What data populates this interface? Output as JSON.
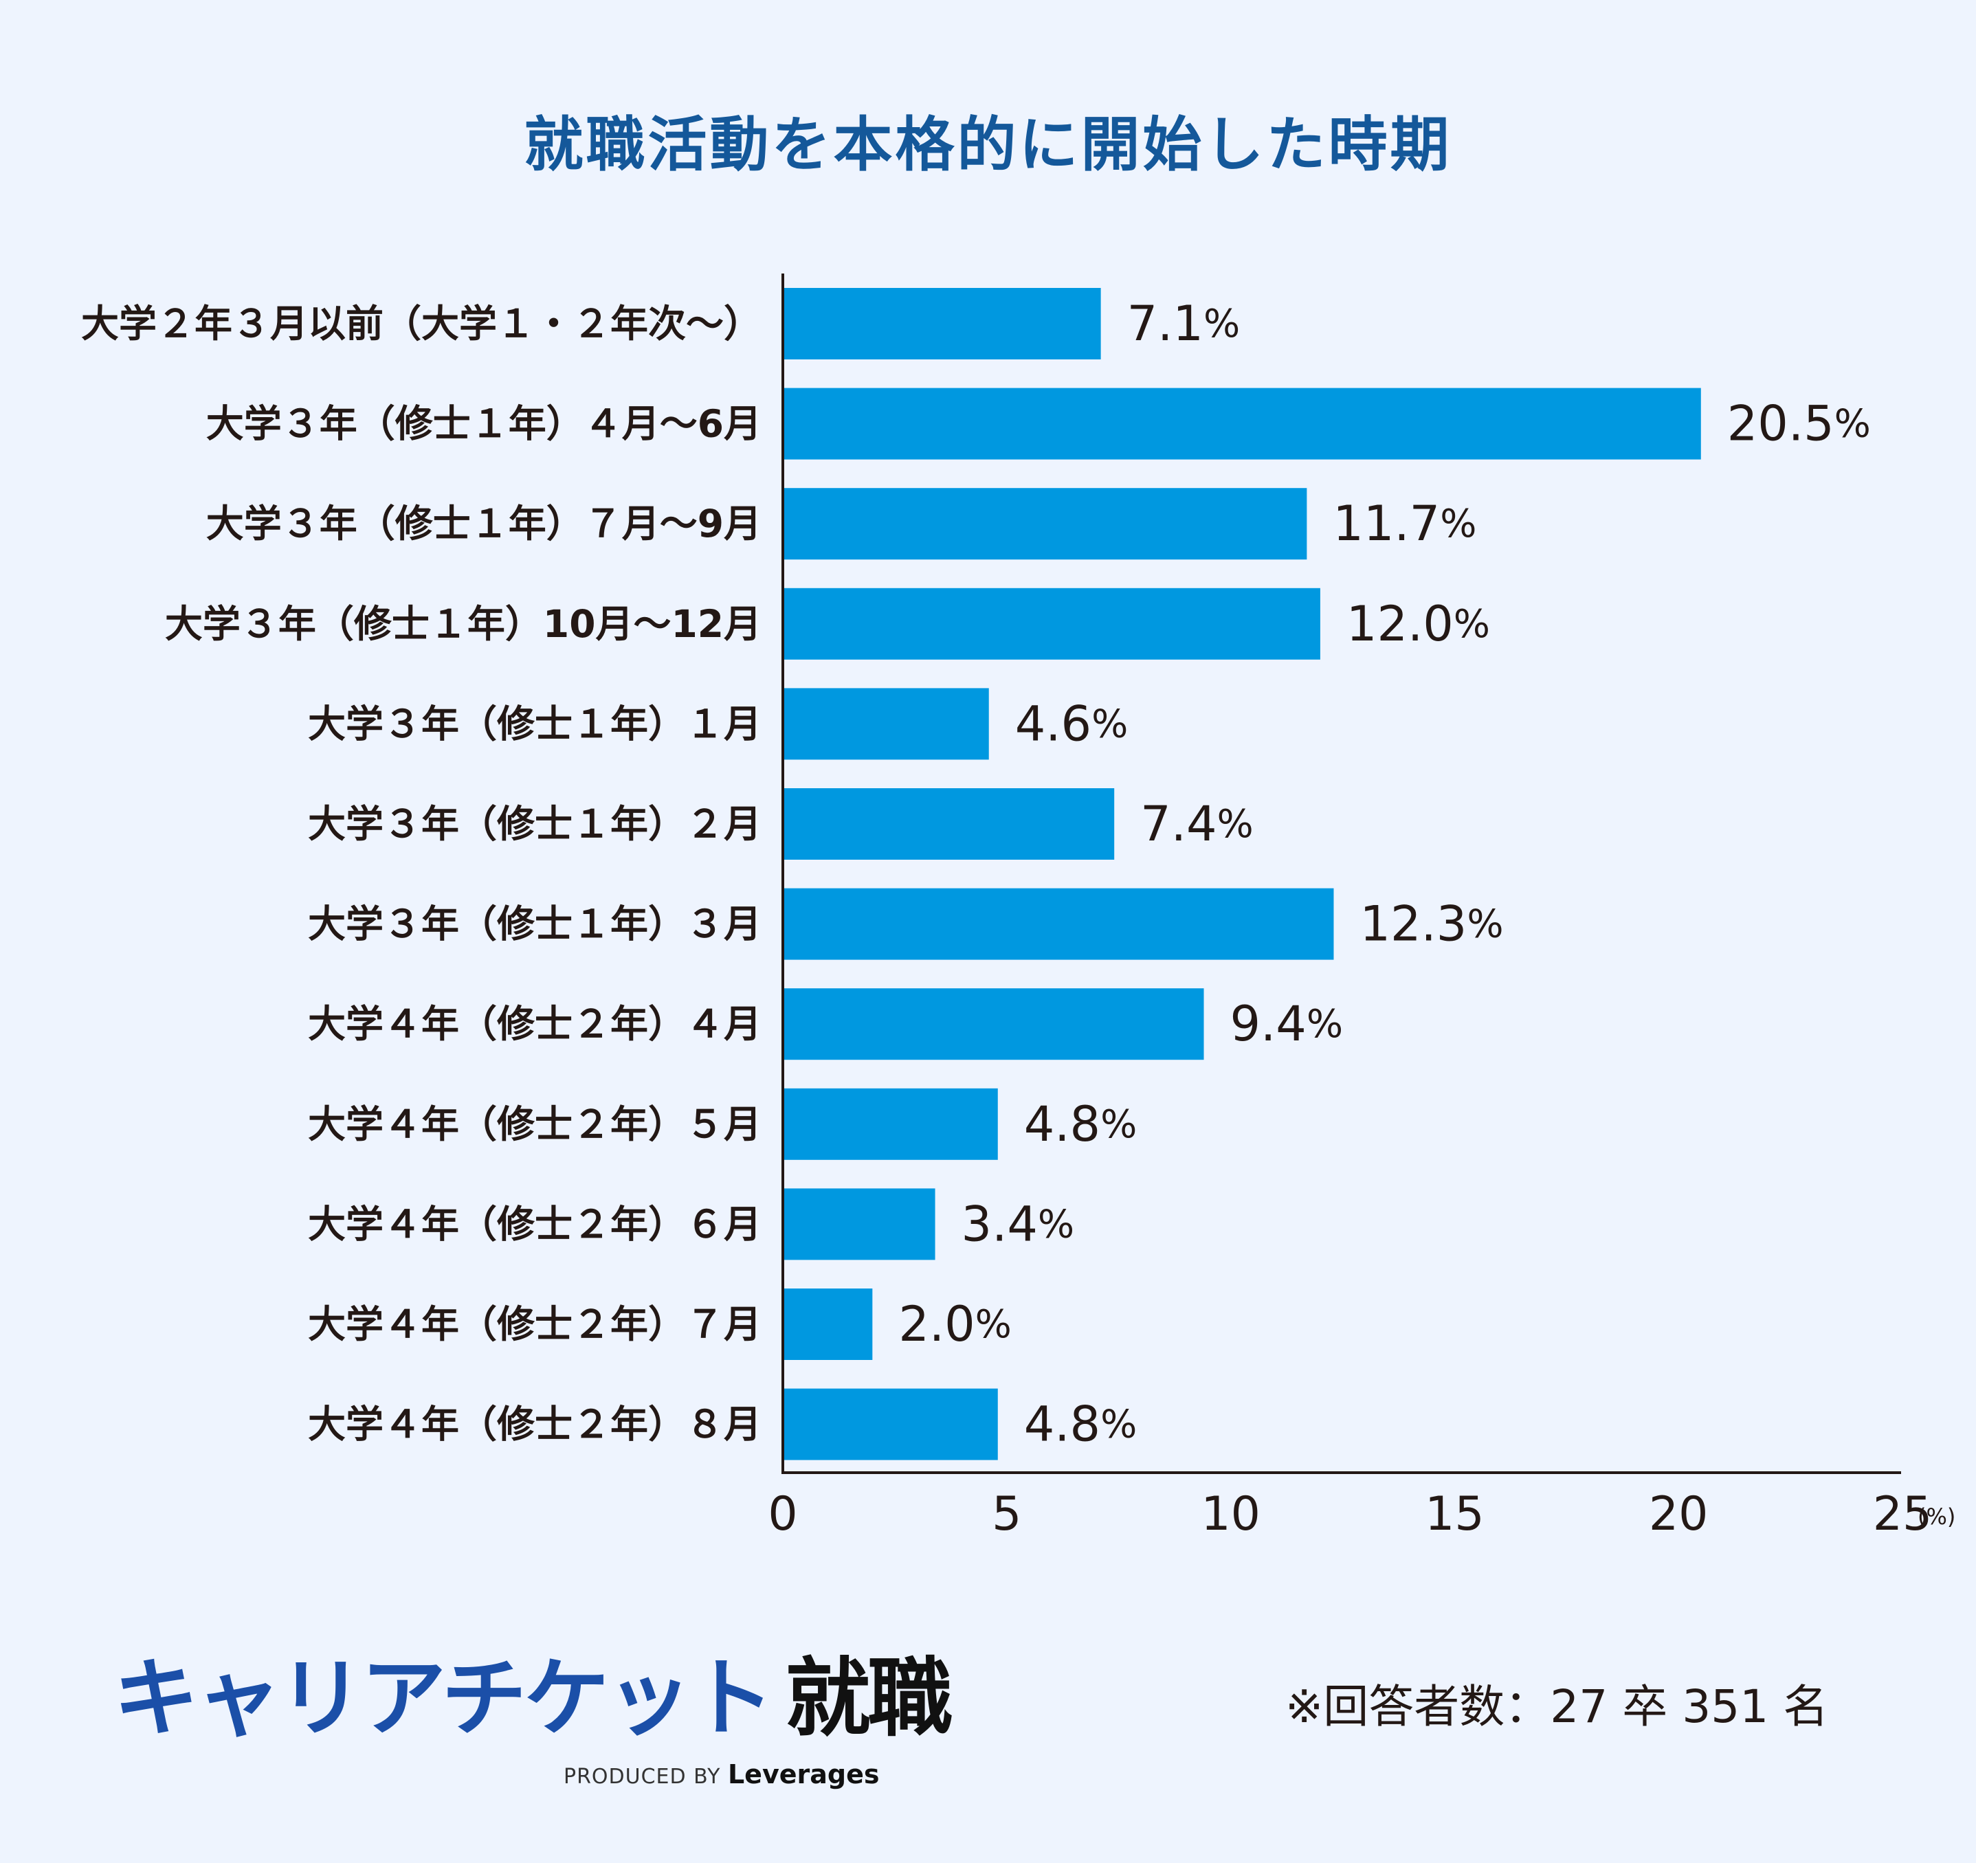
{
  "chart_data": {
    "type": "bar",
    "orientation": "horizontal",
    "title": "就職活動を本格的に開始した時期",
    "categories": [
      "大学２年３月以前（大学１・２年次〜）",
      "大学３年（修士１年）４月〜6月",
      "大学３年（修士１年）７月〜9月",
      "大学３年（修士１年）10月〜12月",
      "大学３年（修士１年）１月",
      "大学３年（修士１年）２月",
      "大学３年（修士１年）３月",
      "大学４年（修士２年）４月",
      "大学４年（修士２年）５月",
      "大学４年（修士２年）６月",
      "大学４年（修士２年）７月",
      "大学４年（修士２年）８月"
    ],
    "values": [
      7.1,
      20.5,
      11.7,
      12.0,
      4.6,
      7.4,
      12.3,
      9.4,
      4.8,
      3.4,
      2.0,
      4.8
    ],
    "value_labels": [
      "7.1",
      "20.5",
      "11.7",
      "12.0",
      "4.6",
      "7.4",
      "12.3",
      "9.4",
      "4.8",
      "3.4",
      "2.0",
      "4.8"
    ],
    "value_suffix": "%",
    "xlim": [
      0,
      25
    ],
    "xticks": [
      "0",
      "5",
      "10",
      "15",
      "20",
      "25"
    ],
    "unit_label": "(%)",
    "bar_color": "#0098e0",
    "grid": false,
    "legend": "none"
  },
  "brand": {
    "logo_main": "キャリアチケット",
    "logo_accent": "就職",
    "produced_by": "PRODUCED BY",
    "company": "Leverages"
  },
  "footnote": "※回答者数：27 卒 351 名",
  "colors": {
    "background": "#eef4fe",
    "title": "#14589a",
    "brand": "#1b4fa8",
    "text": "#231815"
  }
}
